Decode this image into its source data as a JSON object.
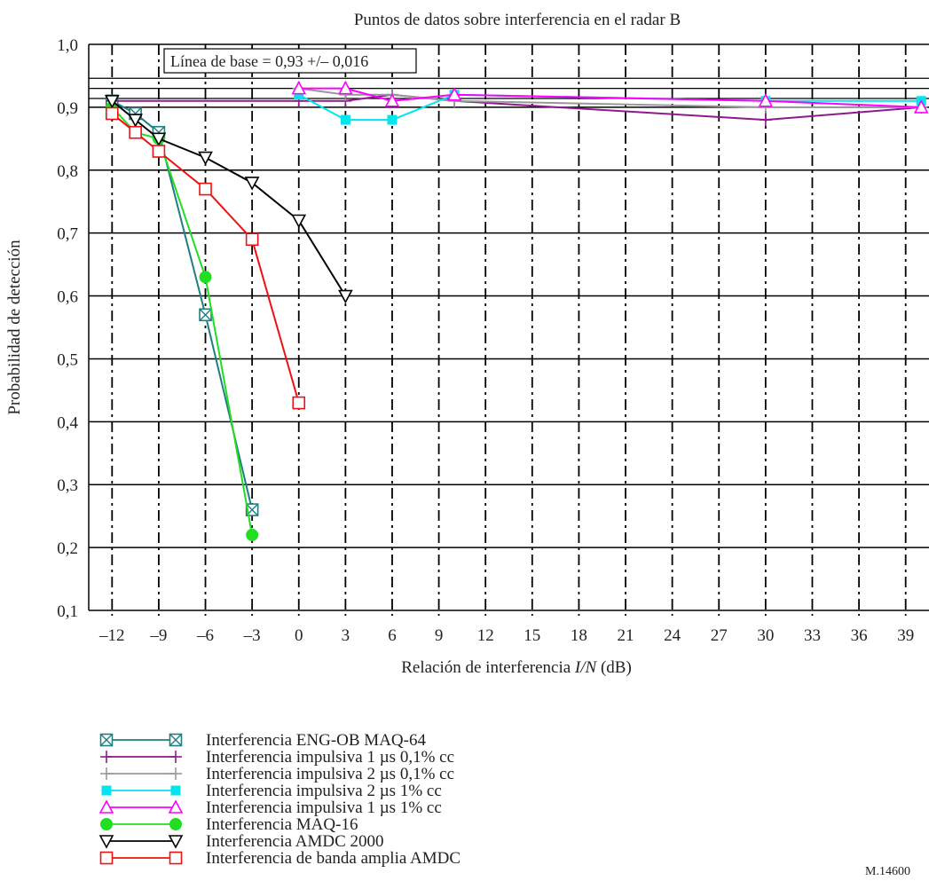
{
  "chart_data": {
    "type": "line",
    "title": "Puntos de datos sobre interferencia en el radar B",
    "xlabel_main": "Relación de interferencia ",
    "xlabel_var": "I/N",
    "xlabel_unit": " (dB)",
    "ylabel": "Probabilidad de detección",
    "xlim": [
      -13.5,
      40.5
    ],
    "ylim": [
      0.1,
      1.0
    ],
    "xticks": [
      -12,
      -9,
      -6,
      -3,
      0,
      3,
      6,
      9,
      12,
      15,
      18,
      21,
      24,
      27,
      30,
      33,
      36,
      39
    ],
    "xtick_labels": [
      "–12",
      "–9",
      "–6",
      "–3",
      "0",
      "3",
      "6",
      "9",
      "12",
      "15",
      "18",
      "21",
      "24",
      "27",
      "30",
      "33",
      "36",
      "39"
    ],
    "yticks": [
      0.1,
      0.2,
      0.3,
      0.4,
      0.5,
      0.6,
      0.7,
      0.8,
      0.9,
      1.0
    ],
    "ytick_labels": [
      "0,1",
      "0,2",
      "0,3",
      "0,4",
      "0,5",
      "0,6",
      "0,7",
      "0,8",
      "0,9",
      "1,0"
    ],
    "grid": true,
    "baseline_label": "Línea de base = 0,93 +/– 0,016",
    "baseline_values": [
      0.946,
      0.93,
      0.914
    ],
    "figure_id": "M.14600",
    "series": [
      {
        "name": "Interferencia ENG-OB MAQ-64",
        "color": "#1f7f80",
        "marker": "boxx",
        "x": [
          -12,
          -10.5,
          -9,
          -6,
          -3
        ],
        "y": [
          0.91,
          0.89,
          0.86,
          0.57,
          0.26
        ]
      },
      {
        "name": "Interferencia impulsiva 1 µs 0,1% cc",
        "color": "#8e1a8e",
        "marker": "plus",
        "x": [
          -12,
          0,
          3,
          6,
          10,
          30,
          40
        ],
        "y": [
          0.91,
          0.91,
          0.91,
          0.92,
          0.91,
          0.88,
          0.9
        ]
      },
      {
        "name": "Interferencia impulsiva 2 µs 0,1% cc",
        "color": "#999999",
        "marker": "plus",
        "x": [
          0,
          3,
          6,
          10,
          30,
          40
        ],
        "y": [
          0.93,
          0.92,
          0.92,
          0.91,
          0.9,
          0.9
        ]
      },
      {
        "name": "Interferencia impulsiva 2 µs 1% cc",
        "color": "#00e5ee",
        "marker": "square",
        "x": [
          0,
          3,
          6,
          10,
          30,
          40
        ],
        "y": [
          0.92,
          0.88,
          0.88,
          0.92,
          0.91,
          0.91
        ]
      },
      {
        "name": "Interferencia impulsiva 1 µs 1% cc",
        "color": "#ff00ff",
        "marker": "triangle",
        "x": [
          0,
          3,
          6,
          10,
          30,
          40
        ],
        "y": [
          0.93,
          0.93,
          0.91,
          0.92,
          0.91,
          0.9
        ]
      },
      {
        "name": "Interferencia MAQ-16",
        "color": "#22dd22",
        "marker": "circle",
        "x": [
          -12,
          -10.5,
          -9,
          -6,
          -3
        ],
        "y": [
          0.9,
          0.86,
          0.85,
          0.63,
          0.22
        ]
      },
      {
        "name": "Interferencia AMDC 2000",
        "color": "#000000",
        "marker": "tridown",
        "x": [
          -12,
          -10.5,
          -9,
          -6,
          -3,
          0,
          3
        ],
        "y": [
          0.91,
          0.88,
          0.85,
          0.82,
          0.78,
          0.72,
          0.6
        ]
      },
      {
        "name": "Interferencia de banda amplia AMDC",
        "color": "#ee1111",
        "marker": "box",
        "x": [
          -12,
          -10.5,
          -9,
          -6,
          -3,
          0
        ],
        "y": [
          0.89,
          0.86,
          0.83,
          0.77,
          0.69,
          0.43
        ]
      }
    ]
  }
}
